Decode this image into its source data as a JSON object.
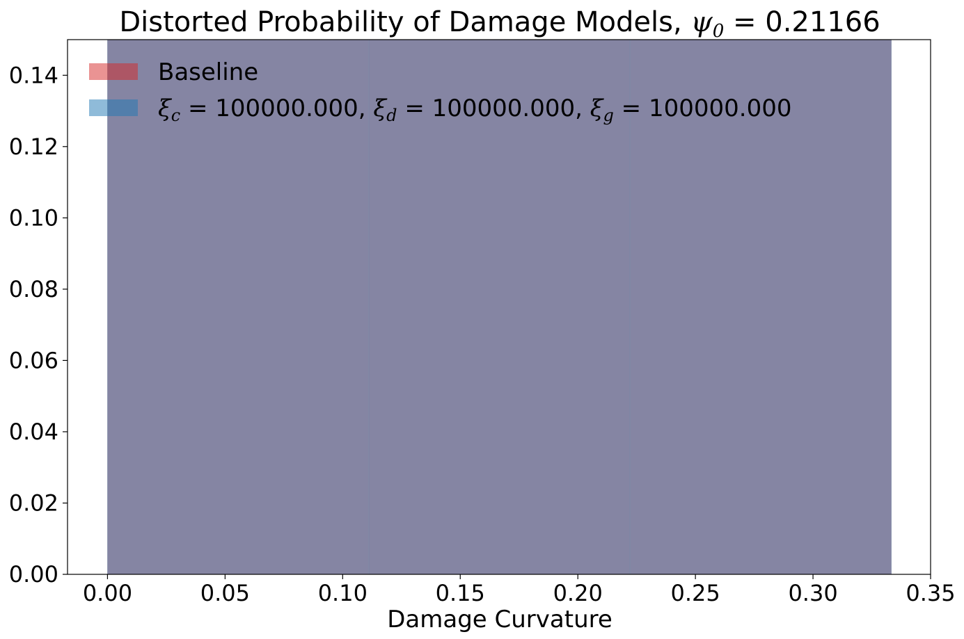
{
  "chart_data": {
    "type": "bar",
    "title": "Distorted Probability of Damage Models, ",
    "title_math": "ψ",
    "title_math_sub": "0",
    "title_value": " = 0.21166",
    "xlabel": "Damage Curvature",
    "ylabel": "",
    "xlim": [
      -0.017,
      0.35
    ],
    "ylim": [
      0,
      0.15
    ],
    "xticks": [
      0.0,
      0.05,
      0.1,
      0.15,
      0.2,
      0.25,
      0.3,
      0.35
    ],
    "xtick_labels": [
      "0.00",
      "0.05",
      "0.10",
      "0.15",
      "0.20",
      "0.25",
      "0.30",
      "0.35"
    ],
    "yticks": [
      0.0,
      0.02,
      0.04,
      0.06,
      0.08,
      0.1,
      0.12,
      0.14
    ],
    "ytick_labels": [
      "0.00",
      "0.02",
      "0.04",
      "0.06",
      "0.08",
      "0.10",
      "0.12",
      "0.14"
    ],
    "bin_edges": [
      0.0,
      0.1111,
      0.2222,
      0.3333
    ],
    "series": [
      {
        "name": "Baseline",
        "color": "#d62728",
        "alpha": 0.5,
        "values": [
          0.16,
          0.16,
          0.16
        ]
      },
      {
        "name": "ξc = 100000.000, ξd = 100000.000, ξg = 100000.000",
        "color": "#1f77b4",
        "alpha": 0.5,
        "values": [
          0.16,
          0.16,
          0.16
        ]
      }
    ],
    "legend": {
      "placement": "top-left",
      "baseline_label": "Baseline",
      "xi_symbol": "ξ",
      "xi_c_sub": "c",
      "xi_d_sub": "d",
      "xi_g_sub": "g",
      "xi_value": " = 100000.000",
      "comma": ", "
    },
    "grid": false
  }
}
